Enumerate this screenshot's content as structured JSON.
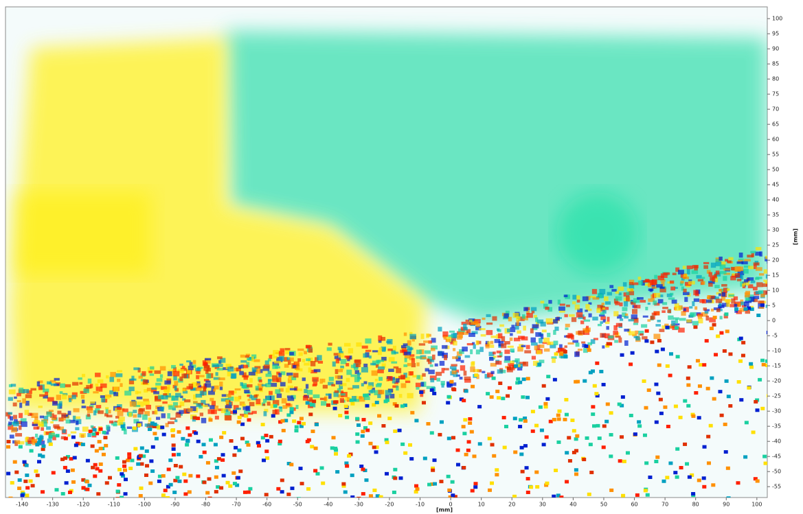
{
  "chart_data": {
    "type": "heatmap",
    "x_label": "[mm]",
    "y_label": "[mm]",
    "xlim": [
      -145.4,
      103.4
    ],
    "ylim": [
      -58.6,
      103.9
    ],
    "xticks": [
      -140,
      -130,
      -120,
      -110,
      -100,
      -90,
      -80,
      -70,
      -60,
      -50,
      -40,
      -30,
      -20,
      -10,
      0,
      10,
      20,
      30,
      40,
      50,
      60,
      70,
      80,
      90,
      100
    ],
    "yticks": [
      -55,
      -50,
      -45,
      -40,
      -35,
      -30,
      -25,
      -20,
      -15,
      -10,
      -5,
      0,
      5,
      10,
      15,
      20,
      25,
      30,
      35,
      40,
      45,
      50,
      55,
      60,
      65,
      70,
      75,
      80,
      85,
      90,
      95,
      100
    ]
  }
}
